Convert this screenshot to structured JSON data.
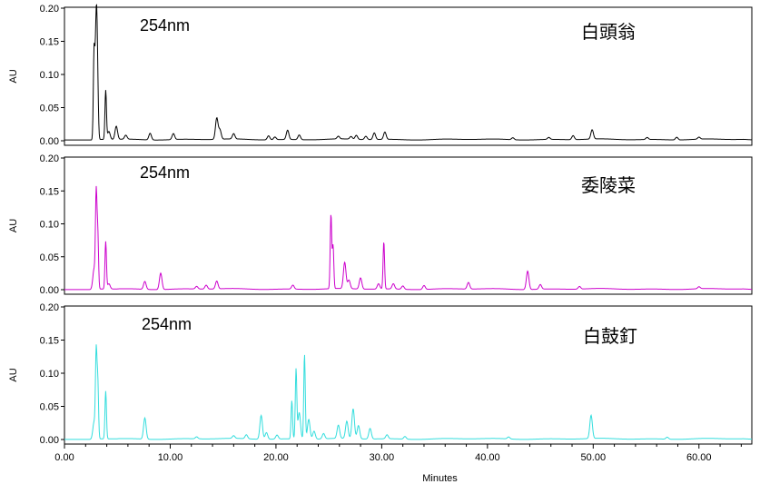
{
  "chart_data": {
    "type": "line",
    "xlabel": "Minutes",
    "x_ticks": [
      "0.00",
      "10.00",
      "20.00",
      "30.00",
      "40.00",
      "50.00",
      "60.00"
    ],
    "xlim": [
      0,
      65
    ],
    "panels": [
      {
        "name": "白頭翁",
        "wavelength": "254nm",
        "ylabel": "AU",
        "ylim": [
          0,
          0.2
        ],
        "y_ticks": [
          "0.00",
          "0.05",
          "0.10",
          "0.15",
          "0.20"
        ],
        "color": "#000000",
        "baseline": 0.002,
        "peaks": [
          {
            "rt": 2.8,
            "height": 0.133
          },
          {
            "rt": 2.95,
            "height": 0.105
          },
          {
            "rt": 3.05,
            "height": 0.142
          },
          {
            "rt": 3.15,
            "height": 0.06
          },
          {
            "rt": 3.9,
            "height": 0.074
          },
          {
            "rt": 4.2,
            "height": 0.012
          },
          {
            "rt": 4.9,
            "height": 0.02
          },
          {
            "rt": 5.8,
            "height": 0.006
          },
          {
            "rt": 8.1,
            "height": 0.01
          },
          {
            "rt": 10.3,
            "height": 0.009
          },
          {
            "rt": 14.4,
            "height": 0.032
          },
          {
            "rt": 14.7,
            "height": 0.014
          },
          {
            "rt": 16.0,
            "height": 0.008
          },
          {
            "rt": 19.3,
            "height": 0.006
          },
          {
            "rt": 19.9,
            "height": 0.004
          },
          {
            "rt": 21.1,
            "height": 0.014
          },
          {
            "rt": 22.2,
            "height": 0.007
          },
          {
            "rt": 25.9,
            "height": 0.004
          },
          {
            "rt": 27.1,
            "height": 0.004
          },
          {
            "rt": 27.6,
            "height": 0.006
          },
          {
            "rt": 28.5,
            "height": 0.005
          },
          {
            "rt": 29.3,
            "height": 0.01
          },
          {
            "rt": 30.3,
            "height": 0.011
          },
          {
            "rt": 42.4,
            "height": 0.003
          },
          {
            "rt": 45.8,
            "height": 0.003
          },
          {
            "rt": 48.1,
            "height": 0.006
          },
          {
            "rt": 49.9,
            "height": 0.014
          },
          {
            "rt": 55.1,
            "height": 0.003
          },
          {
            "rt": 57.9,
            "height": 0.004
          },
          {
            "rt": 60.0,
            "height": 0.003
          }
        ]
      },
      {
        "name": "委陵菜",
        "wavelength": "254nm",
        "ylabel": "AU",
        "ylim": [
          0,
          0.2
        ],
        "y_ticks": [
          "0.00",
          "0.05",
          "0.10",
          "0.15",
          "0.20"
        ],
        "color": "#cc00cc",
        "baseline": 0.001,
        "peaks": [
          {
            "rt": 2.8,
            "height": 0.03
          },
          {
            "rt": 3.0,
            "height": 0.14
          },
          {
            "rt": 3.15,
            "height": 0.083
          },
          {
            "rt": 3.9,
            "height": 0.072
          },
          {
            "rt": 4.2,
            "height": 0.008
          },
          {
            "rt": 7.6,
            "height": 0.012
          },
          {
            "rt": 9.1,
            "height": 0.025
          },
          {
            "rt": 12.5,
            "height": 0.004
          },
          {
            "rt": 13.4,
            "height": 0.006
          },
          {
            "rt": 14.4,
            "height": 0.012
          },
          {
            "rt": 21.6,
            "height": 0.006
          },
          {
            "rt": 25.2,
            "height": 0.113
          },
          {
            "rt": 25.4,
            "height": 0.065
          },
          {
            "rt": 26.5,
            "height": 0.04
          },
          {
            "rt": 26.9,
            "height": 0.013
          },
          {
            "rt": 28.0,
            "height": 0.017
          },
          {
            "rt": 29.7,
            "height": 0.008
          },
          {
            "rt": 30.2,
            "height": 0.072
          },
          {
            "rt": 31.1,
            "height": 0.008
          },
          {
            "rt": 32.0,
            "height": 0.005
          },
          {
            "rt": 34.0,
            "height": 0.006
          },
          {
            "rt": 38.2,
            "height": 0.01
          },
          {
            "rt": 43.8,
            "height": 0.028
          },
          {
            "rt": 45.0,
            "height": 0.007
          },
          {
            "rt": 48.7,
            "height": 0.004
          },
          {
            "rt": 60.0,
            "height": 0.003
          }
        ]
      },
      {
        "name": "白鼓釘",
        "wavelength": "254nm",
        "ylabel": "AU",
        "ylim": [
          0,
          0.2
        ],
        "y_ticks": [
          "0.00",
          "0.05",
          "0.10",
          "0.15",
          "0.20"
        ],
        "color": "#33dddd",
        "baseline": 0.001,
        "peaks": [
          {
            "rt": 2.8,
            "height": 0.025
          },
          {
            "rt": 3.0,
            "height": 0.127
          },
          {
            "rt": 3.15,
            "height": 0.085
          },
          {
            "rt": 3.9,
            "height": 0.072
          },
          {
            "rt": 7.6,
            "height": 0.032
          },
          {
            "rt": 12.5,
            "height": 0.003
          },
          {
            "rt": 16.0,
            "height": 0.004
          },
          {
            "rt": 17.2,
            "height": 0.006
          },
          {
            "rt": 18.6,
            "height": 0.036
          },
          {
            "rt": 19.1,
            "height": 0.01
          },
          {
            "rt": 20.1,
            "height": 0.006
          },
          {
            "rt": 21.5,
            "height": 0.058
          },
          {
            "rt": 21.9,
            "height": 0.105
          },
          {
            "rt": 22.2,
            "height": 0.04
          },
          {
            "rt": 22.7,
            "height": 0.128
          },
          {
            "rt": 23.1,
            "height": 0.03
          },
          {
            "rt": 23.6,
            "height": 0.012
          },
          {
            "rt": 24.5,
            "height": 0.008
          },
          {
            "rt": 25.9,
            "height": 0.02
          },
          {
            "rt": 26.7,
            "height": 0.026
          },
          {
            "rt": 27.3,
            "height": 0.045
          },
          {
            "rt": 27.8,
            "height": 0.02
          },
          {
            "rt": 28.9,
            "height": 0.016
          },
          {
            "rt": 30.5,
            "height": 0.006
          },
          {
            "rt": 32.2,
            "height": 0.004
          },
          {
            "rt": 42.0,
            "height": 0.003
          },
          {
            "rt": 49.8,
            "height": 0.035
          },
          {
            "rt": 57.0,
            "height": 0.003
          }
        ]
      }
    ]
  }
}
